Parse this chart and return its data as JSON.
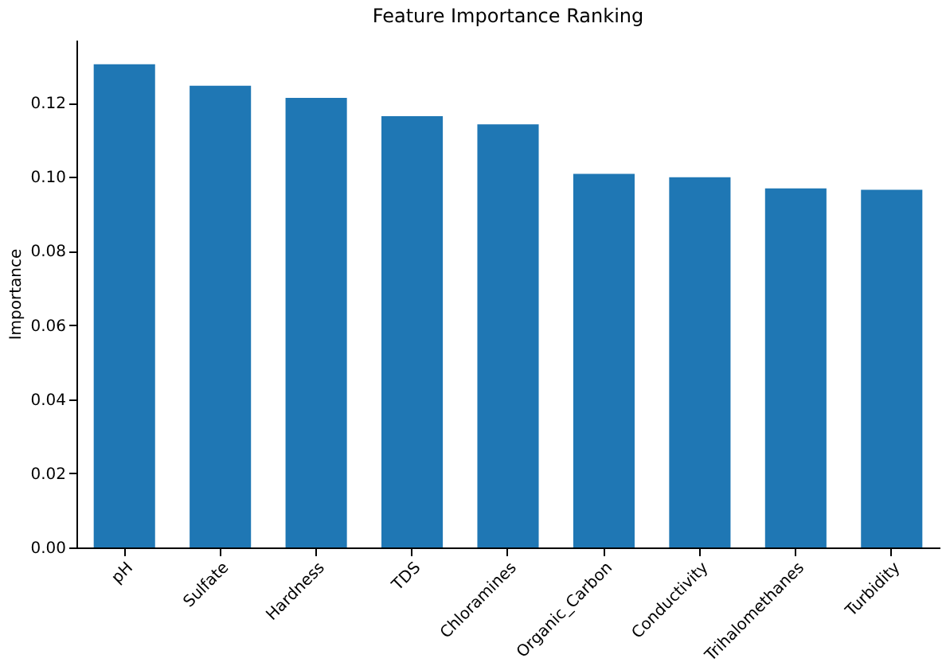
{
  "chart_data": {
    "type": "bar",
    "title": "Feature Importance Ranking",
    "ylabel": "Importance",
    "categories": [
      "pH",
      "Sulfate",
      "Hardness",
      "TDS",
      "Chloramines",
      "Organic_Carbon",
      "Conductivity",
      "Trihalomethanes",
      "Turbidity"
    ],
    "values": [
      0.1304,
      0.1246,
      0.1213,
      0.1164,
      0.1142,
      0.1008,
      0.0999,
      0.0969,
      0.0965
    ],
    "color": "#1f77b4",
    "ylim": [
      0,
      0.137
    ],
    "yticks": [
      {
        "value": 0,
        "label": "0.00"
      },
      {
        "value": 0.02,
        "label": "0.02"
      },
      {
        "value": 0.04,
        "label": "0.04"
      },
      {
        "value": 0.06,
        "label": "0.06"
      },
      {
        "value": 0.08,
        "label": "0.08"
      },
      {
        "value": 0.1,
        "label": "0.10"
      },
      {
        "value": 0.12,
        "label": "0.12"
      }
    ],
    "grid": false
  }
}
